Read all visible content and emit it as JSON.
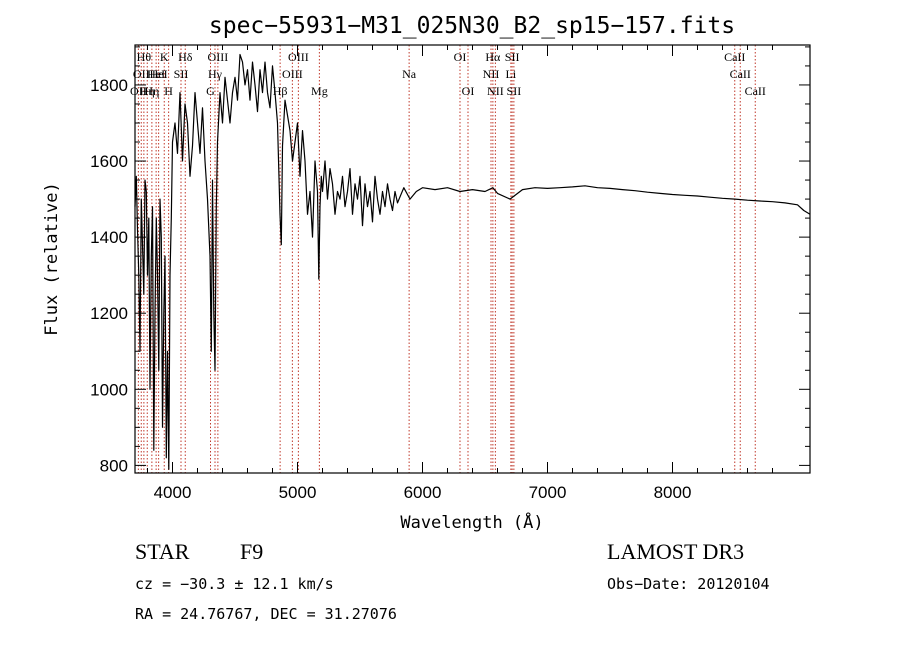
{
  "chart_data": {
    "type": "line",
    "title": "spec−55931−M31_025N30_B2_sp15−157.fits",
    "xlabel": "Wavelength (Å)",
    "ylabel": "Flux (relative)",
    "xlim": [
      3700,
      9100
    ],
    "ylim": [
      780,
      1905
    ],
    "x_ticks": [
      4000,
      5000,
      6000,
      7000,
      8000
    ],
    "x_tick_labels": [
      "4000",
      "5000",
      "6000",
      "7000",
      "8000"
    ],
    "y_ticks": [
      800,
      1000,
      1200,
      1400,
      1600,
      1800
    ],
    "y_tick_labels": [
      "800",
      "1000",
      "1200",
      "1400",
      "1600",
      "1800"
    ],
    "line_color": "#000000",
    "marker_color": "#c0392b",
    "series": [
      {
        "name": "flux",
        "x": [
          3700,
          3710,
          3720,
          3730,
          3740,
          3750,
          3760,
          3770,
          3780,
          3790,
          3800,
          3810,
          3820,
          3830,
          3840,
          3850,
          3860,
          3870,
          3880,
          3890,
          3900,
          3910,
          3920,
          3930,
          3940,
          3950,
          3960,
          3970,
          3980,
          3990,
          4000,
          4020,
          4040,
          4060,
          4080,
          4100,
          4120,
          4140,
          4160,
          4180,
          4200,
          4220,
          4240,
          4260,
          4280,
          4300,
          4310,
          4320,
          4330,
          4340,
          4350,
          4360,
          4380,
          4400,
          4420,
          4440,
          4460,
          4480,
          4500,
          4520,
          4540,
          4560,
          4580,
          4600,
          4620,
          4640,
          4660,
          4680,
          4700,
          4720,
          4740,
          4760,
          4780,
          4800,
          4820,
          4840,
          4860,
          4870,
          4880,
          4900,
          4920,
          4940,
          4960,
          4980,
          5000,
          5020,
          5040,
          5060,
          5080,
          5100,
          5120,
          5140,
          5160,
          5170,
          5180,
          5190,
          5200,
          5220,
          5240,
          5260,
          5280,
          5300,
          5320,
          5340,
          5360,
          5380,
          5400,
          5420,
          5440,
          5460,
          5480,
          5500,
          5520,
          5540,
          5560,
          5580,
          5600,
          5620,
          5640,
          5660,
          5680,
          5700,
          5720,
          5740,
          5760,
          5780,
          5800,
          5850,
          5900,
          5950,
          6000,
          6100,
          6200,
          6300,
          6400,
          6500,
          6563,
          6600,
          6700,
          6800,
          6900,
          7000,
          7100,
          7200,
          7300,
          7400,
          7500,
          7600,
          7700,
          7800,
          7900,
          8000,
          8100,
          8200,
          8300,
          8400,
          8500,
          8600,
          8700,
          8800,
          8900,
          9000,
          9050,
          9100
        ],
        "values": [
          1480,
          1560,
          1420,
          1300,
          1100,
          1500,
          1380,
          1250,
          1550,
          1520,
          1300,
          1450,
          1000,
          1350,
          1480,
          840,
          1200,
          1450,
          1300,
          1050,
          1500,
          1400,
          900,
          1200,
          1350,
          820,
          1100,
          790,
          1300,
          1450,
          1650,
          1700,
          1620,
          1780,
          1600,
          1750,
          1700,
          1560,
          1640,
          1780,
          1700,
          1620,
          1740,
          1600,
          1500,
          1350,
          1100,
          1550,
          1200,
          1050,
          1480,
          1650,
          1780,
          1700,
          1820,
          1760,
          1700,
          1780,
          1820,
          1760,
          1880,
          1860,
          1800,
          1840,
          1760,
          1860,
          1800,
          1730,
          1840,
          1780,
          1860,
          1780,
          1740,
          1850,
          1780,
          1700,
          1460,
          1380,
          1640,
          1760,
          1720,
          1680,
          1600,
          1650,
          1700,
          1560,
          1680,
          1600,
          1460,
          1520,
          1400,
          1600,
          1520,
          1290,
          1480,
          1560,
          1520,
          1600,
          1500,
          1580,
          1540,
          1460,
          1520,
          1500,
          1560,
          1480,
          1520,
          1580,
          1460,
          1540,
          1500,
          1560,
          1430,
          1540,
          1480,
          1520,
          1440,
          1560,
          1500,
          1460,
          1520,
          1480,
          1540,
          1500,
          1470,
          1520,
          1490,
          1530,
          1500,
          1520,
          1530,
          1525,
          1530,
          1520,
          1525,
          1520,
          1530,
          1515,
          1500,
          1525,
          1530,
          1528,
          1530,
          1532,
          1535,
          1530,
          1528,
          1525,
          1522,
          1518,
          1515,
          1512,
          1510,
          1508,
          1505,
          1502,
          1500,
          1497,
          1495,
          1493,
          1490,
          1485,
          1470,
          1460
        ]
      }
    ],
    "lines": [
      {
        "wavelength": 3727,
        "label": "OII",
        "row": 3
      },
      {
        "wavelength": 3750,
        "label": "OII",
        "row": 2
      },
      {
        "wavelength": 3771,
        "label": "Hθ",
        "row": 1
      },
      {
        "wavelength": 3798,
        "label": "Hη",
        "row": 3
      },
      {
        "wavelength": 3835,
        "label": "Hη",
        "row": 3
      },
      {
        "wavelength": 3869,
        "label": "HeI",
        "row": 2
      },
      {
        "wavelength": 3889,
        "label": "HeI",
        "row": 2
      },
      {
        "wavelength": 3934,
        "label": "K",
        "row": 1
      },
      {
        "wavelength": 3969,
        "label": "H",
        "row": 3
      },
      {
        "wavelength": 4068,
        "label": "SII",
        "row": 2
      },
      {
        "wavelength": 4102,
        "label": "Hδ",
        "row": 1
      },
      {
        "wavelength": 4304,
        "label": "G",
        "row": 3
      },
      {
        "wavelength": 4340,
        "label": "Hγ",
        "row": 2
      },
      {
        "wavelength": 4363,
        "label": "OIII",
        "row": 1
      },
      {
        "wavelength": 4861,
        "label": "Hβ",
        "row": 3
      },
      {
        "wavelength": 4959,
        "label": "OIII",
        "row": 2
      },
      {
        "wavelength": 5007,
        "label": "OIII",
        "row": 1
      },
      {
        "wavelength": 5175,
        "label": "Mg",
        "row": 3
      },
      {
        "wavelength": 5893,
        "label": "Na",
        "row": 2
      },
      {
        "wavelength": 6300,
        "label": "OI",
        "row": 1
      },
      {
        "wavelength": 6364,
        "label": "OI",
        "row": 3
      },
      {
        "wavelength": 6548,
        "label": "NII",
        "row": 2
      },
      {
        "wavelength": 6563,
        "label": "Hα",
        "row": 1
      },
      {
        "wavelength": 6583,
        "label": "NII",
        "row": 3
      },
      {
        "wavelength": 6707,
        "label": "Li",
        "row": 2
      },
      {
        "wavelength": 6717,
        "label": "SII",
        "row": 1
      },
      {
        "wavelength": 6731,
        "label": "SII",
        "row": 3
      },
      {
        "wavelength": 8498,
        "label": "CaII",
        "row": 1
      },
      {
        "wavelength": 8542,
        "label": "CaII",
        "row": 2
      },
      {
        "wavelength": 8662,
        "label": "CaII",
        "row": 3
      }
    ]
  },
  "info": {
    "object_class": "STAR",
    "subclass": "F9",
    "survey": "LAMOST DR3",
    "cz": "cz = −30.3 ± 12.1 km/s",
    "obs_date": "Obs−Date: 20120104",
    "coords": "RA =  24.76767, DEC =  31.27076"
  }
}
